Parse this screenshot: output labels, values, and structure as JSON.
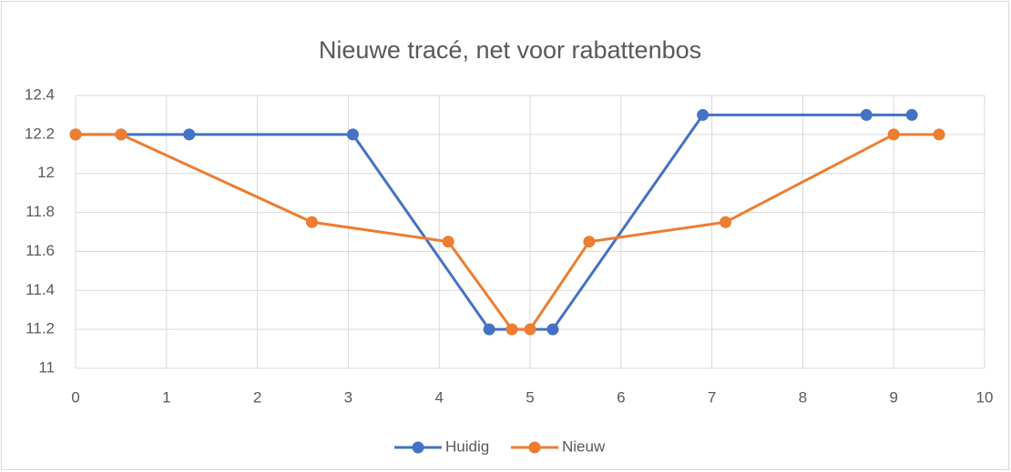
{
  "chart_data": {
    "type": "scatter_line",
    "title": "Nieuwe tracé, net voor rabattenbos",
    "series": [
      {
        "name": "Huidig",
        "color": "#4472c4",
        "x": [
          0,
          0.5,
          1.25,
          3.05,
          4.55,
          5.25,
          6.9,
          8.7,
          9.2
        ],
        "values": [
          12.2,
          12.2,
          12.2,
          12.2,
          11.2,
          11.2,
          12.3,
          12.3,
          12.3
        ]
      },
      {
        "name": "Nieuw",
        "color": "#ed7d31",
        "x": [
          0,
          0.5,
          2.6,
          4.1,
          4.8,
          5,
          5.65,
          7.15,
          9,
          9.5
        ],
        "values": [
          12.2,
          12.2,
          11.75,
          11.65,
          11.2,
          11.2,
          11.65,
          11.75,
          12.2,
          12.2
        ]
      }
    ],
    "xlim": [
      0,
      10
    ],
    "xticks": [
      0,
      1,
      2,
      3,
      4,
      5,
      6,
      7,
      8,
      9,
      10
    ],
    "ylim": [
      11,
      12.4
    ],
    "yticks": [
      11,
      11.2,
      11.4,
      11.6,
      11.8,
      12,
      12.2,
      12.4
    ],
    "grid": true,
    "legend": "bottom"
  }
}
